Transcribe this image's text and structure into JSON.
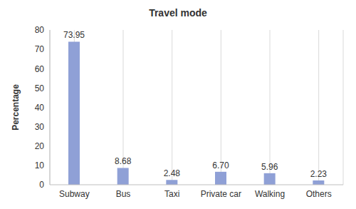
{
  "chart_data": {
    "type": "bar",
    "title": "Travel mode",
    "y_label": "Percentage",
    "categories": [
      "Subway",
      "Bus",
      "Taxi",
      "Private car",
      "Walking",
      "Others"
    ],
    "values": [
      73.95,
      8.68,
      2.48,
      6.7,
      5.96,
      2.23
    ],
    "value_labels": [
      "73.95",
      "8.68",
      "2.48",
      "6.70",
      "5.96",
      "2.23"
    ],
    "color": "#8fa0d6",
    "ylim": [
      0,
      80
    ],
    "yticks": [
      0,
      10,
      20,
      30,
      40,
      50,
      60,
      70,
      80
    ],
    "grid": true,
    "data_labels": true
  }
}
